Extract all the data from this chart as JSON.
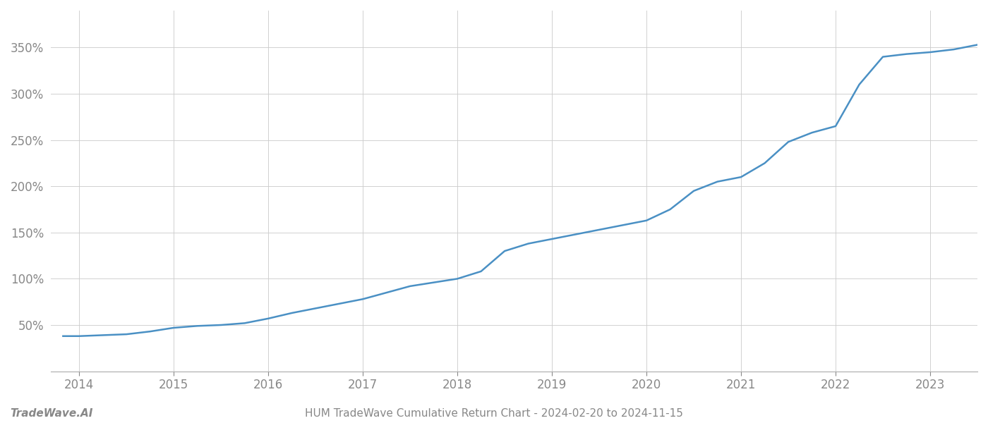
{
  "title": "HUM TradeWave Cumulative Return Chart - 2024-02-20 to 2024-11-15",
  "watermark": "TradeWave.AI",
  "line_color": "#4a90c4",
  "background_color": "#ffffff",
  "grid_color": "#cccccc",
  "text_color": "#555555",
  "xlabel": "",
  "ylabel": "",
  "xlim": [
    2013.7,
    2023.5
  ],
  "ylim": [
    0,
    390
  ],
  "yticks": [
    50,
    100,
    150,
    200,
    250,
    300,
    350
  ],
  "xticks": [
    2014,
    2015,
    2016,
    2017,
    2018,
    2019,
    2020,
    2021,
    2022,
    2023
  ],
  "x_years": [
    2013.83,
    2014.0,
    2014.25,
    2014.5,
    2014.75,
    2015.0,
    2015.25,
    2015.5,
    2015.75,
    2016.0,
    2016.25,
    2016.5,
    2016.75,
    2017.0,
    2017.25,
    2017.5,
    2017.75,
    2018.0,
    2018.25,
    2018.5,
    2018.75,
    2019.0,
    2019.25,
    2019.5,
    2019.75,
    2020.0,
    2020.25,
    2020.5,
    2020.75,
    2021.0,
    2021.25,
    2021.5,
    2021.75,
    2022.0,
    2022.25,
    2022.5,
    2022.75,
    2023.0,
    2023.25,
    2023.5
  ],
  "y_values": [
    38,
    38,
    39,
    40,
    43,
    47,
    49,
    50,
    52,
    57,
    63,
    68,
    73,
    78,
    85,
    92,
    96,
    100,
    108,
    130,
    138,
    143,
    148,
    153,
    158,
    163,
    175,
    195,
    205,
    210,
    225,
    248,
    258,
    265,
    310,
    340,
    343,
    345,
    348,
    353
  ],
  "line_width": 1.8,
  "title_fontsize": 11,
  "watermark_fontsize": 11,
  "tick_fontsize": 12,
  "tick_color": "#888888"
}
